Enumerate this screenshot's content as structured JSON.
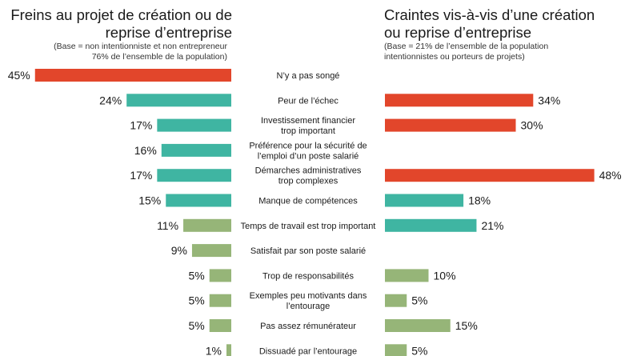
{
  "left_panel": {
    "title_line1": "Freins au projet de création ou de",
    "title_line2": "reprise d’entreprise",
    "base_line1": "(Base = non intentionniste et non entrepreneur",
    "base_line2": "76% de l’ensemble de la population)"
  },
  "right_panel": {
    "title_line1": "Craintes vis-à-vis d’une création",
    "title_line2": "ou reprise d’entreprise",
    "base_line1": "(Base = 21% de l’ensemble de la population",
    "base_line2": "intentionnistes ou porteurs de projets)"
  },
  "colors": {
    "red": "#e2462b",
    "teal": "#3fb5a2",
    "green": "#96b578"
  },
  "chart_data": {
    "type": "bar",
    "orientation": "horizontal-butterfly",
    "unit": "%",
    "categories": [
      [
        "N’y a pas songé"
      ],
      [
        "Peur de l’échec"
      ],
      [
        "Investissement  financier",
        "trop important"
      ],
      [
        "Préférence pour la sécurité de",
        "l’emploi d’un poste salarié"
      ],
      [
        "Démarches administratives",
        "trop complexes"
      ],
      [
        "Manque de compétences"
      ],
      [
        "Temps de travail est trop important"
      ],
      [
        "Satisfait par son poste salarié"
      ],
      [
        "Trop de responsabilités"
      ],
      [
        "Exemples peu motivants dans",
        "l’entourage"
      ],
      [
        "Pas assez rémunérateur"
      ],
      [
        "Dissuadé par l’entourage"
      ]
    ],
    "series": [
      {
        "name": "Freins au projet de création ou de reprise d’entreprise",
        "values": [
          45,
          24,
          17,
          16,
          17,
          15,
          11,
          9,
          5,
          5,
          5,
          1
        ],
        "labels": [
          "45%",
          "24%",
          "17%",
          "16%",
          "17%",
          "15%",
          "11%",
          "9%",
          "5%",
          "5%",
          "5%",
          "1%"
        ],
        "colors": [
          "red",
          "teal",
          "teal",
          "teal",
          "teal",
          "teal",
          "green",
          "green",
          "green",
          "green",
          "green",
          "green"
        ]
      },
      {
        "name": "Craintes vis-à-vis d’une création ou reprise d’entreprise",
        "values": [
          null,
          34,
          30,
          null,
          48,
          18,
          21,
          null,
          10,
          5,
          15,
          5
        ],
        "labels": [
          null,
          "34%",
          "30%",
          null,
          "48%",
          "18%",
          "21%",
          null,
          "10%",
          "5%",
          "15%",
          "5%"
        ],
        "colors": [
          null,
          "red",
          "red",
          null,
          "red",
          "teal",
          "teal",
          null,
          "green",
          "green",
          "green",
          "green"
        ]
      }
    ],
    "xlim": [
      0,
      50
    ]
  }
}
